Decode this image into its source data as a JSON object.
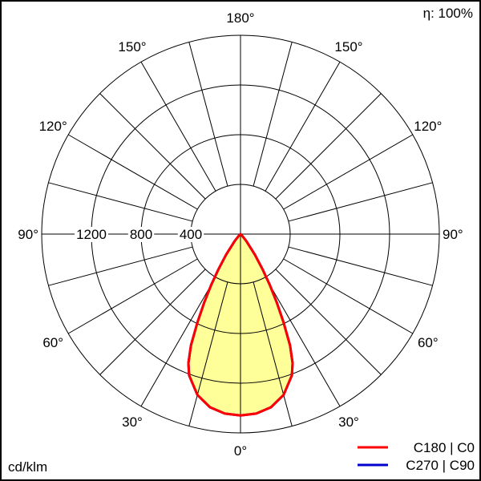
{
  "chart_data": {
    "type": "polar",
    "unit_label": "cd/klm",
    "efficiency_label": "η: 100%",
    "radial_ticks": [
      400,
      800,
      1200
    ],
    "radial_max": 1600,
    "angle_labels": [
      {
        "angle": 0,
        "text": "0°"
      },
      {
        "angle": 30,
        "text": "30°"
      },
      {
        "angle": -30,
        "text": "30°"
      },
      {
        "angle": 60,
        "text": "60°"
      },
      {
        "angle": -60,
        "text": "60°"
      },
      {
        "angle": 90,
        "text": "90°"
      },
      {
        "angle": -90,
        "text": "90°"
      },
      {
        "angle": 120,
        "text": "120°"
      },
      {
        "angle": -120,
        "text": "120°"
      },
      {
        "angle": 150,
        "text": "150°"
      },
      {
        "angle": -150,
        "text": "150°"
      },
      {
        "angle": 180,
        "text": "180°"
      }
    ],
    "gamma": [
      0,
      5,
      10,
      15,
      20,
      22,
      24,
      26,
      28,
      30,
      32,
      35,
      40,
      45,
      50,
      90,
      180
    ],
    "series": [
      {
        "name": "C270 | C90",
        "color": "#0000cc",
        "values": [
          1460,
          1450,
          1415,
          1340,
          1210,
          1120,
          980,
          790,
          620,
          470,
          340,
          200,
          70,
          15,
          0,
          0,
          0
        ]
      },
      {
        "name": "C180 | C0",
        "color": "#ff0000",
        "values": [
          1460,
          1450,
          1415,
          1340,
          1210,
          1120,
          980,
          790,
          620,
          470,
          340,
          200,
          70,
          15,
          0,
          0,
          0
        ]
      }
    ],
    "fill_color": "#ffff99",
    "grid": true
  }
}
